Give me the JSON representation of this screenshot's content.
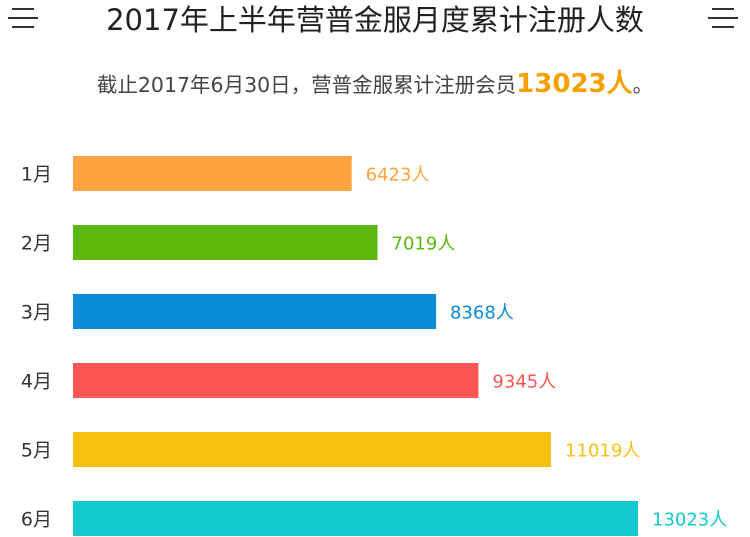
{
  "header": {
    "title": "2017年上半年营普金服月度累计注册人数",
    "subtitle_prefix": "截止2017年6月30日，营普金服累计注册会员",
    "subtitle_highlight": "13023人",
    "subtitle_suffix": "。",
    "highlight_color": "#f5a000"
  },
  "chart_data": {
    "type": "bar",
    "orientation": "horizontal",
    "title": "2017年上半年营普金服月度累计注册人数",
    "categories": [
      "1月",
      "2月",
      "3月",
      "4月",
      "5月",
      "6月"
    ],
    "values": [
      6423,
      7019,
      8368,
      9345,
      11019,
      13023
    ],
    "value_labels": [
      "6423人",
      "7019人",
      "8368人",
      "9345人",
      "11019人",
      "13023人"
    ],
    "colors": [
      "#ffa341",
      "#5cb80c",
      "#0a8bd8",
      "#ff5555",
      "#f8c112",
      "#14c8d0"
    ],
    "xlim": [
      0,
      14000
    ],
    "grid": false,
    "legend": "none"
  }
}
